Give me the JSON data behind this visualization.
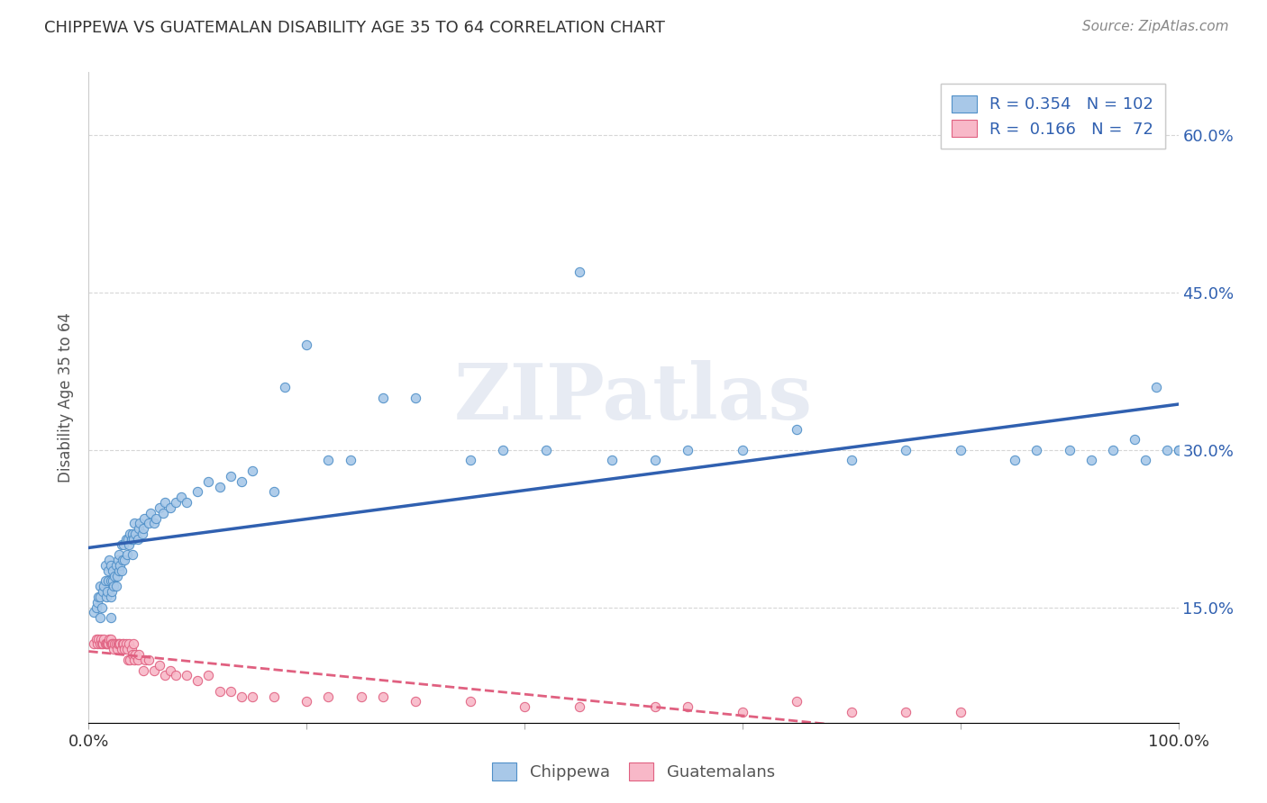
{
  "title": "CHIPPEWA VS GUATEMALAN DISABILITY AGE 35 TO 64 CORRELATION CHART",
  "source": "Source: ZipAtlas.com",
  "ylabel": "Disability Age 35 to 64",
  "xlim": [
    0,
    1.0
  ],
  "ylim": [
    0.04,
    0.66
  ],
  "yticks": [
    0.15,
    0.3,
    0.45,
    0.6
  ],
  "yticklabels": [
    "15.0%",
    "30.0%",
    "45.0%",
    "60.0%"
  ],
  "chippewa_color": "#a8c8e8",
  "chippewa_edge": "#5090c8",
  "guatemalan_color": "#f8b8c8",
  "guatemalan_edge": "#e06080",
  "trend_chippewa_color": "#3060b0",
  "trend_guatemalan_color": "#e06080",
  "legend_R_chippewa": "0.354",
  "legend_N_chippewa": "102",
  "legend_R_guatemalan": "0.166",
  "legend_N_guatemalan": "72",
  "watermark": "ZIPatlas",
  "chippewa_x": [
    0.005,
    0.007,
    0.008,
    0.009,
    0.01,
    0.01,
    0.01,
    0.012,
    0.013,
    0.014,
    0.015,
    0.015,
    0.016,
    0.017,
    0.018,
    0.018,
    0.019,
    0.02,
    0.02,
    0.02,
    0.02,
    0.021,
    0.022,
    0.022,
    0.023,
    0.024,
    0.025,
    0.025,
    0.026,
    0.027,
    0.028,
    0.028,
    0.029,
    0.03,
    0.03,
    0.031,
    0.032,
    0.033,
    0.034,
    0.035,
    0.036,
    0.037,
    0.038,
    0.039,
    0.04,
    0.04,
    0.041,
    0.042,
    0.043,
    0.045,
    0.046,
    0.047,
    0.049,
    0.05,
    0.051,
    0.055,
    0.057,
    0.06,
    0.062,
    0.065,
    0.068,
    0.07,
    0.075,
    0.08,
    0.085,
    0.09,
    0.1,
    0.11,
    0.12,
    0.13,
    0.14,
    0.15,
    0.17,
    0.18,
    0.2,
    0.22,
    0.24,
    0.27,
    0.3,
    0.35,
    0.38,
    0.42,
    0.45,
    0.48,
    0.52,
    0.55,
    0.6,
    0.65,
    0.7,
    0.75,
    0.8,
    0.85,
    0.87,
    0.9,
    0.92,
    0.94,
    0.96,
    0.97,
    0.98,
    0.99,
    1.0,
    1.0
  ],
  "chippewa_y": [
    0.145,
    0.15,
    0.155,
    0.16,
    0.14,
    0.16,
    0.17,
    0.15,
    0.165,
    0.17,
    0.175,
    0.19,
    0.16,
    0.165,
    0.175,
    0.185,
    0.195,
    0.14,
    0.16,
    0.175,
    0.19,
    0.165,
    0.175,
    0.185,
    0.17,
    0.18,
    0.17,
    0.19,
    0.18,
    0.195,
    0.185,
    0.2,
    0.19,
    0.185,
    0.21,
    0.195,
    0.21,
    0.195,
    0.215,
    0.2,
    0.215,
    0.21,
    0.22,
    0.215,
    0.2,
    0.22,
    0.215,
    0.23,
    0.22,
    0.215,
    0.225,
    0.23,
    0.22,
    0.225,
    0.235,
    0.23,
    0.24,
    0.23,
    0.235,
    0.245,
    0.24,
    0.25,
    0.245,
    0.25,
    0.255,
    0.25,
    0.26,
    0.27,
    0.265,
    0.275,
    0.27,
    0.28,
    0.26,
    0.36,
    0.4,
    0.29,
    0.29,
    0.35,
    0.35,
    0.29,
    0.3,
    0.3,
    0.47,
    0.29,
    0.29,
    0.3,
    0.3,
    0.32,
    0.29,
    0.3,
    0.3,
    0.29,
    0.3,
    0.3,
    0.29,
    0.3,
    0.31,
    0.29,
    0.36,
    0.3,
    0.3,
    0.3
  ],
  "guatemalan_x": [
    0.005,
    0.007,
    0.008,
    0.009,
    0.01,
    0.011,
    0.012,
    0.013,
    0.014,
    0.015,
    0.016,
    0.017,
    0.018,
    0.019,
    0.02,
    0.02,
    0.021,
    0.022,
    0.023,
    0.024,
    0.025,
    0.026,
    0.027,
    0.028,
    0.029,
    0.03,
    0.031,
    0.032,
    0.033,
    0.034,
    0.035,
    0.036,
    0.037,
    0.038,
    0.039,
    0.04,
    0.041,
    0.042,
    0.043,
    0.045,
    0.046,
    0.05,
    0.052,
    0.055,
    0.06,
    0.065,
    0.07,
    0.075,
    0.08,
    0.09,
    0.1,
    0.11,
    0.12,
    0.13,
    0.14,
    0.15,
    0.17,
    0.2,
    0.22,
    0.25,
    0.27,
    0.3,
    0.35,
    0.4,
    0.45,
    0.52,
    0.55,
    0.6,
    0.65,
    0.7,
    0.75,
    0.8
  ],
  "guatemalan_y": [
    0.115,
    0.12,
    0.115,
    0.12,
    0.115,
    0.12,
    0.115,
    0.115,
    0.12,
    0.115,
    0.115,
    0.115,
    0.115,
    0.12,
    0.115,
    0.12,
    0.115,
    0.115,
    0.11,
    0.115,
    0.115,
    0.11,
    0.115,
    0.115,
    0.115,
    0.11,
    0.115,
    0.115,
    0.11,
    0.115,
    0.11,
    0.1,
    0.115,
    0.1,
    0.11,
    0.105,
    0.115,
    0.1,
    0.105,
    0.1,
    0.105,
    0.09,
    0.1,
    0.1,
    0.09,
    0.095,
    0.085,
    0.09,
    0.085,
    0.085,
    0.08,
    0.085,
    0.07,
    0.07,
    0.065,
    0.065,
    0.065,
    0.06,
    0.065,
    0.065,
    0.065,
    0.06,
    0.06,
    0.055,
    0.055,
    0.055,
    0.055,
    0.05,
    0.06,
    0.05,
    0.05,
    0.05
  ]
}
